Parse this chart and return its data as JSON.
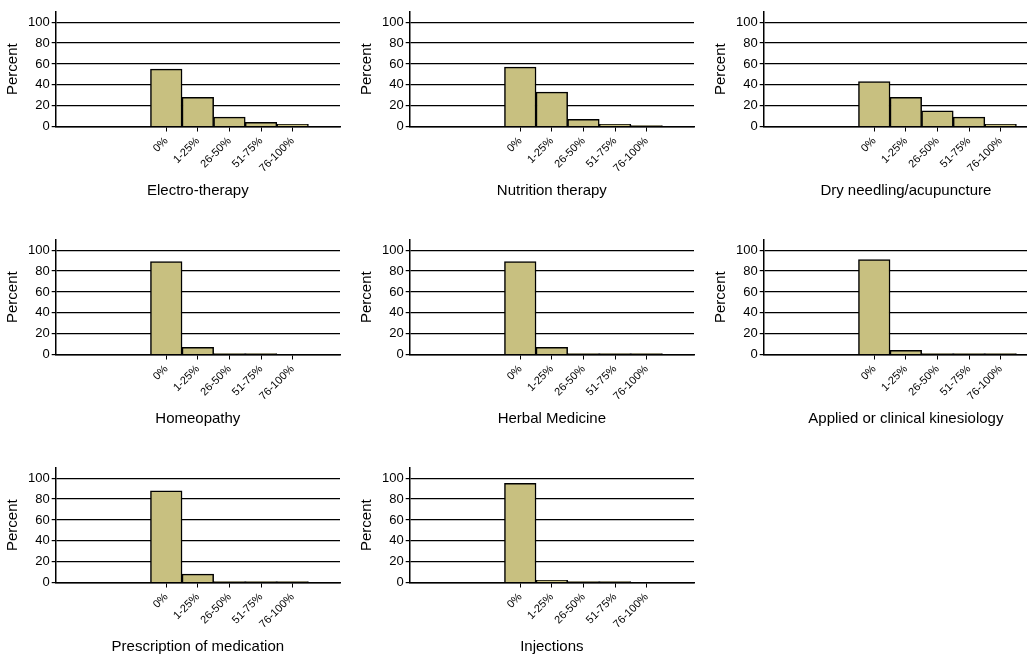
{
  "chart_data": [
    {
      "type": "bar",
      "xlabel": "Electro-therapy",
      "ylabel": "Percent",
      "categories": [
        null,
        null,
        null,
        "0%",
        "1-25%",
        "26-50%",
        "51-75%",
        "76-100%",
        null
      ],
      "values": [
        null,
        null,
        null,
        55,
        28,
        9,
        4,
        2,
        null
      ],
      "color": "#c8c080",
      "ylim": [
        0,
        110
      ],
      "yticks": [
        0,
        20,
        40,
        60,
        80,
        100
      ],
      "grid": "y"
    },
    {
      "type": "bar",
      "xlabel": "Nutrition therapy",
      "ylabel": "Percent",
      "categories": [
        null,
        null,
        null,
        "0%",
        "1-25%",
        "26-50%",
        "51-75%",
        "76-100%",
        null
      ],
      "values": [
        null,
        null,
        null,
        57,
        33,
        7,
        2,
        1,
        null
      ],
      "color": "#c8c080",
      "ylim": [
        0,
        110
      ],
      "yticks": [
        0,
        20,
        40,
        60,
        80,
        100
      ],
      "grid": "y"
    },
    {
      "type": "bar",
      "xlabel": "Dry needling/acupuncture",
      "ylabel": "Percent",
      "categories": [
        null,
        null,
        null,
        "0%",
        "1-25%",
        "26-50%",
        "51-75%",
        "76-100%",
        null
      ],
      "values": [
        null,
        null,
        null,
        43,
        28,
        15,
        9,
        2,
        null
      ],
      "color": "#c8c080",
      "ylim": [
        0,
        110
      ],
      "yticks": [
        0,
        20,
        40,
        60,
        80,
        100
      ],
      "grid": "y"
    },
    {
      "type": "bar",
      "xlabel": "Homeopathy",
      "ylabel": "Percent",
      "categories": [
        null,
        null,
        null,
        "0%",
        "1-25%",
        "26-50%",
        "51-75%",
        "76-100%",
        null
      ],
      "values": [
        null,
        null,
        null,
        89,
        7,
        1,
        1,
        0,
        null
      ],
      "color": "#c8c080",
      "ylim": [
        0,
        110
      ],
      "yticks": [
        0,
        20,
        40,
        60,
        80,
        100
      ],
      "grid": "y"
    },
    {
      "type": "bar",
      "xlabel": "Herbal Medicine",
      "ylabel": "Percent",
      "categories": [
        null,
        null,
        null,
        "0%",
        "1-25%",
        "26-50%",
        "51-75%",
        "76-100%",
        null
      ],
      "values": [
        null,
        null,
        null,
        89,
        7,
        1,
        1,
        1,
        null
      ],
      "color": "#c8c080",
      "ylim": [
        0,
        110
      ],
      "yticks": [
        0,
        20,
        40,
        60,
        80,
        100
      ],
      "grid": "y"
    },
    {
      "type": "bar",
      "xlabel": "Applied or clinical kinesiology",
      "ylabel": "Percent",
      "categories": [
        null,
        null,
        null,
        "0%",
        "1-25%",
        "26-50%",
        "51-75%",
        "76-100%",
        null
      ],
      "values": [
        null,
        null,
        null,
        91,
        4,
        1,
        1,
        1,
        null
      ],
      "color": "#c8c080",
      "ylim": [
        0,
        110
      ],
      "yticks": [
        0,
        20,
        40,
        60,
        80,
        100
      ],
      "grid": "y"
    },
    {
      "type": "bar",
      "xlabel": "Prescription of medication",
      "ylabel": "Percent",
      "categories": [
        null,
        null,
        null,
        "0%",
        "1-25%",
        "26-50%",
        "51-75%",
        "76-100%",
        null
      ],
      "values": [
        null,
        null,
        null,
        88,
        8,
        1,
        1,
        1,
        null
      ],
      "color": "#c8c080",
      "ylim": [
        0,
        110
      ],
      "yticks": [
        0,
        20,
        40,
        60,
        80,
        100
      ],
      "grid": "y"
    },
    {
      "type": "bar",
      "xlabel": "Injections",
      "ylabel": "Percent",
      "categories": [
        null,
        null,
        null,
        "0%",
        "1-25%",
        "26-50%",
        "51-75%",
        "76-100%",
        null
      ],
      "values": [
        null,
        null,
        null,
        95,
        2,
        1,
        1,
        0,
        null
      ],
      "color": "#c8c080",
      "ylim": [
        0,
        110
      ],
      "yticks": [
        0,
        20,
        40,
        60,
        80,
        100
      ],
      "grid": "y"
    }
  ]
}
